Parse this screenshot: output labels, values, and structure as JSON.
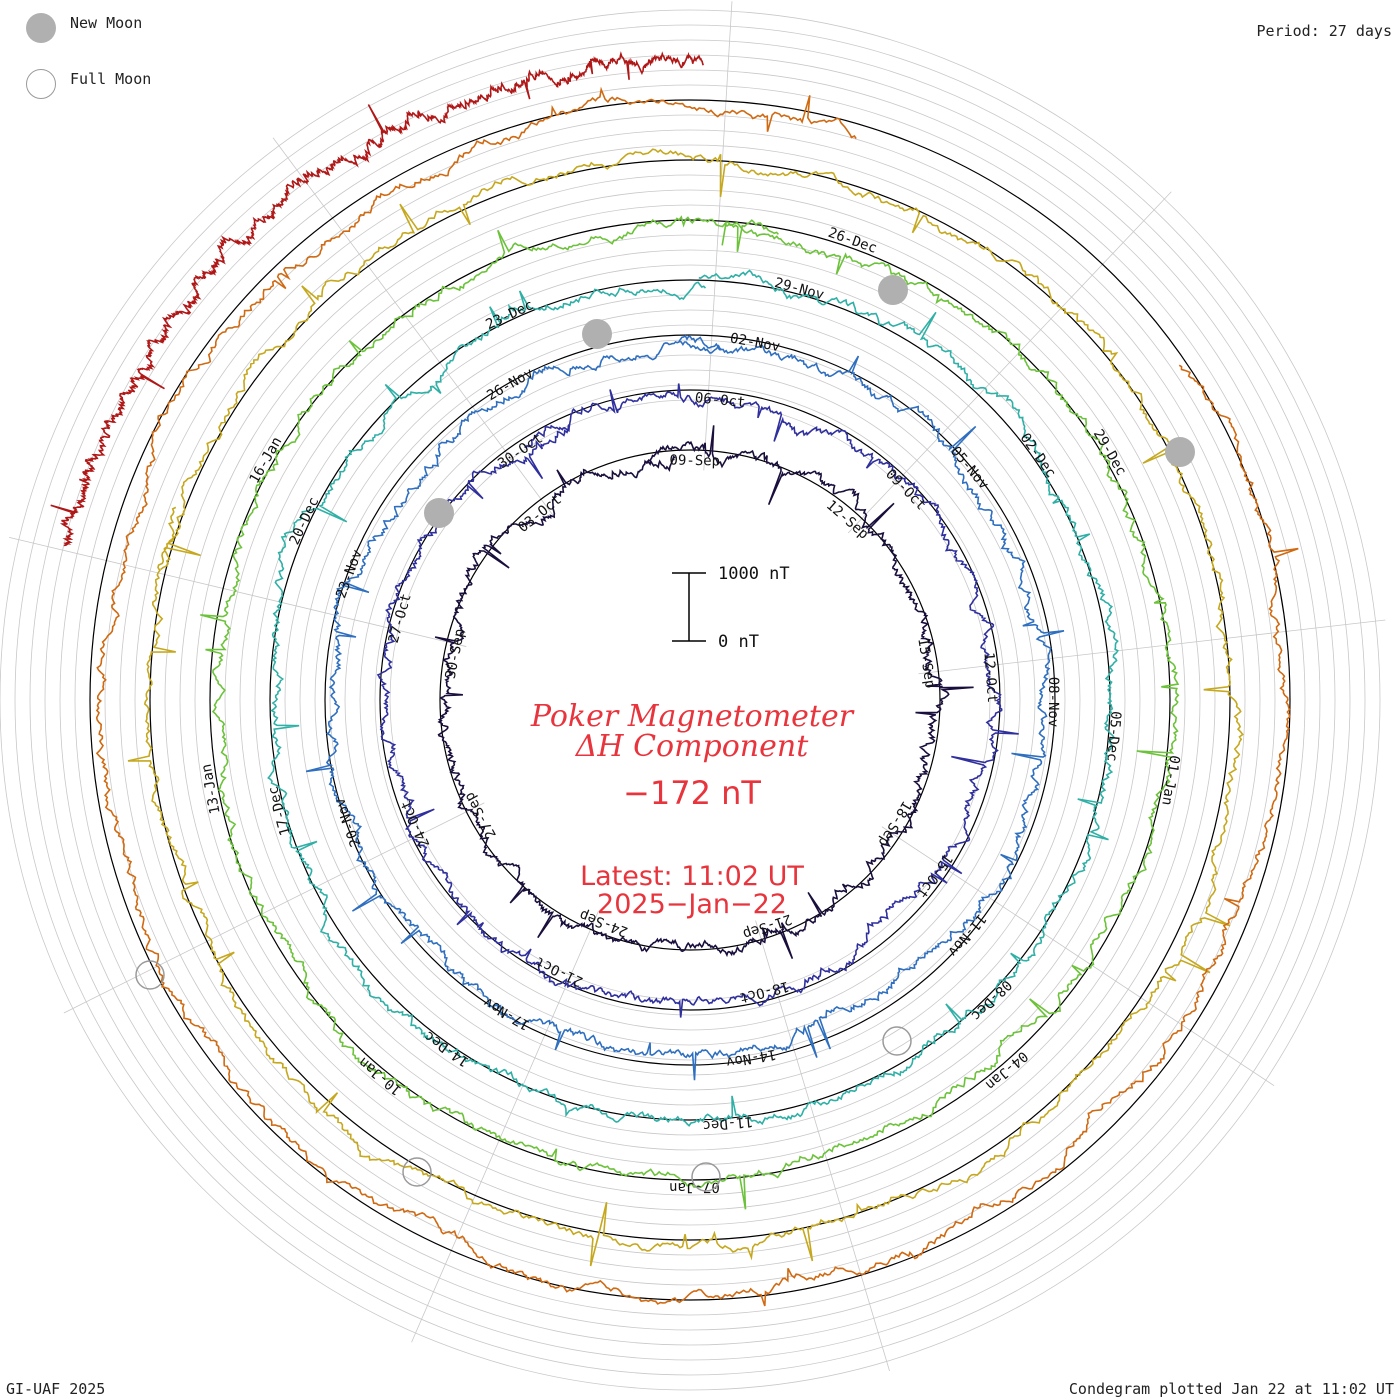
{
  "legend": {
    "new_moon": "New Moon",
    "full_moon": "Full Moon"
  },
  "period": "Period: 27 days",
  "footer": {
    "left": "GI-UAF 2025",
    "right": "Condegram plotted Jan 22 at 11:02 UT"
  },
  "scale_bar": {
    "top_label": "1000 nT",
    "bottom_label": "0 nT"
  },
  "title": {
    "line1": "Poker Magnetometer",
    "line2": "ΔH Component",
    "value": "−172 nT",
    "latest": "Latest: 11:02 UT",
    "date": "2025−Jan−22"
  },
  "colors": {
    "title": "#e8343c",
    "grid": "#c8c8c8",
    "baseline": "#000000",
    "new_moon": "#b0b0b0",
    "full_moon": "#9a9a9a"
  },
  "chart_data": {
    "type": "line",
    "description": "Spiral condegram of Poker Flat magnetometer ΔH, 27-day period",
    "period_days": 27,
    "units": "nT",
    "scale_nT": [
      0,
      1000
    ],
    "series": [
      {
        "color": "#1a0f3c",
        "start": "09-Sep",
        "end": "06-Oct"
      },
      {
        "color": "#2f2f9e",
        "start": "30-Sep",
        "end": "27-Oct"
      },
      {
        "color": "#2f6fc0",
        "start": "06-Oct",
        "end": "02-Nov"
      },
      {
        "color": "#2fb0a6",
        "start": "02-Nov",
        "end": "29-Nov"
      },
      {
        "color": "#6cc23a",
        "start": "29-Nov",
        "end": "26-Dec"
      },
      {
        "color": "#c6a81e",
        "start": "20-Dec",
        "end": "16-Jan"
      },
      {
        "color": "#d06a12",
        "start": "26-Dec",
        "end": "22-Jan"
      },
      {
        "color": "#b01818",
        "start": "16-Jan",
        "end": "22-Jan"
      }
    ],
    "date_labels": [
      "09-Sep",
      "12-Sep",
      "15-Sep",
      "18-Sep",
      "21-Sep",
      "24-Sep",
      "27-Sep",
      "30-Sep",
      "03-Oct",
      "06-Oct",
      "09-Oct",
      "12-Oct",
      "15-Oct",
      "18-Oct",
      "21-Oct",
      "24-Oct",
      "27-Oct",
      "30-Oct",
      "02-Nov",
      "05-Nov",
      "08-Nov",
      "11-Nov",
      "14-Nov",
      "17-Nov",
      "20-Nov",
      "23-Nov",
      "26-Nov",
      "29-Nov",
      "02-Dec",
      "05-Dec",
      "08-Dec",
      "11-Dec",
      "14-Dec",
      "17-Dec",
      "20-Dec",
      "23-Dec",
      "26-Dec",
      "29-Dec",
      "01-Jan",
      "04-Jan",
      "07-Jan",
      "10-Jan",
      "13-Jan",
      "16-Jan"
    ]
  }
}
